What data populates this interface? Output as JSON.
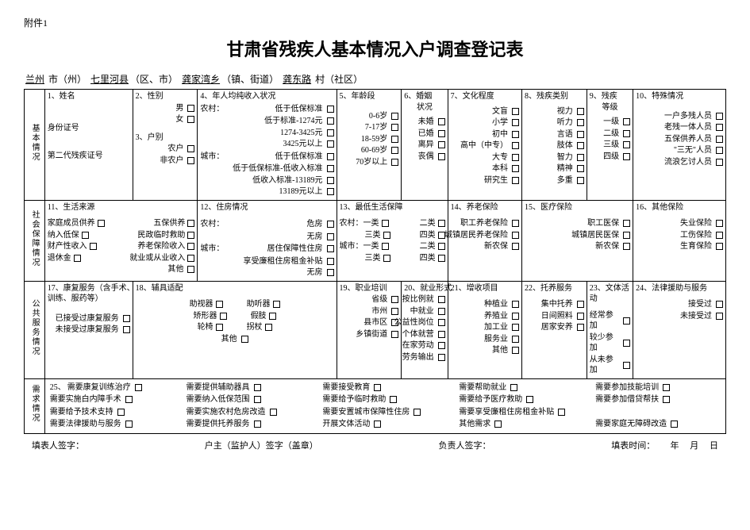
{
  "attachment": "附件1",
  "title": "甘肃省残疾人基本情况入户调查登记表",
  "location": {
    "city_prefix": "兰州",
    "city_label": " 市（州）",
    "county": "七里河县",
    "county_label": "（区、市）",
    "town": "龚家湾乡",
    "town_label": "（镇、街道）",
    "village": "龚东路",
    "village_label": " 村（社区）"
  },
  "sections": {
    "basic": "基本情况",
    "social": "社会保障情况",
    "public": "公共服务情况",
    "need": "需求情况"
  },
  "basic": {
    "c1": {
      "h": "1、姓名",
      "a": "身份证号",
      "b": "第二代残疾证号"
    },
    "c2": {
      "h": "2、性别",
      "opts": [
        "男",
        "女"
      ],
      "h3": "3、户别",
      "opts3": [
        "农户",
        "非农户"
      ]
    },
    "c4": {
      "h": "4、年人均纯收入状况",
      "rural": "农村：",
      "rural_opts": [
        "低于低保标准",
        "低于标准-1274元",
        "1274-3425元",
        "3425元以上"
      ],
      "urban": "城市：",
      "urban_opts": [
        "低于低保标准",
        "低于低保标准-低收入标准",
        "低收入标准-13189元",
        "13189元以上"
      ]
    },
    "c5": {
      "h": "5、年龄段",
      "opts": [
        "0-6岁",
        "7-17岁",
        "18-59岁",
        "60-69岁",
        "70岁以上"
      ]
    },
    "c6": {
      "h": "6、婚姻",
      "sub": "状况",
      "opts": [
        "未婚",
        "已婚",
        "离异",
        "丧偶"
      ]
    },
    "c7": {
      "h": "7、文化程度",
      "opts": [
        "文盲",
        "小学",
        "初中",
        "高中（中专）",
        "大专",
        "本科",
        "研究生"
      ]
    },
    "c8": {
      "h": "8、残疾类别",
      "opts": [
        "视力",
        "听力",
        "言语",
        "肢体",
        "智力",
        "精神",
        "多重"
      ]
    },
    "c9": {
      "h": "9、残疾",
      "sub": "等级",
      "opts": [
        "一级",
        "二级",
        "三级",
        "四级"
      ]
    },
    "c10": {
      "h": "10、特殊情况",
      "opts": [
        "一户多残人员",
        "老残一体人员",
        "五保供养人员",
        "\"三无\"人员",
        "流浪乞讨人员"
      ]
    }
  },
  "social": {
    "c11": {
      "h": "11、生活来源",
      "pairs": [
        [
          "家庭成员供养",
          "五保供养"
        ],
        [
          "纳入低保",
          "民政临时救助"
        ],
        [
          "财产性收入",
          "养老保险收入"
        ],
        [
          "退休金",
          "就业或从业收入"
        ]
      ],
      "last": "其他"
    },
    "c12": {
      "h": "12、住房情况",
      "rural": "农村：",
      "ruralR": [
        "危房",
        "无房"
      ],
      "urban": "城市：",
      "urbanR": [
        "居住保障性住房",
        "享受廉租住房租金补贴",
        "无房"
      ]
    },
    "c13": {
      "h": "13、最低生活保障",
      "rows": [
        [
          "农村：一类",
          "二类"
        ],
        [
          "三类",
          "四类"
        ],
        [
          "城市：一类",
          "二类"
        ],
        [
          "三类",
          "四类"
        ]
      ]
    },
    "c14": {
      "h": "14、养老保险",
      "opts": [
        "职工养老保险",
        "城镇居民养老保险",
        "新农保"
      ]
    },
    "c15": {
      "h": "15、医疗保险",
      "opts": [
        "职工医保",
        "城镇居民医保",
        "新农保"
      ]
    },
    "c16": {
      "h": "16、其他保险",
      "opts": [
        "失业保险",
        "工伤保险",
        "生育保险"
      ]
    }
  },
  "public": {
    "c17": {
      "h": "17、康复服务（含手术、",
      "h2": "训练、服药等）",
      "opts": [
        "已接受过康复服务",
        "未接受过康复服务"
      ]
    },
    "c18": {
      "h": "18、辅具适配",
      "pairs": [
        [
          "助视器",
          "助听器"
        ],
        [
          "矫形器",
          "假肢"
        ],
        [
          "轮椅",
          "拐杖"
        ]
      ],
      "last": "其他"
    },
    "c19": {
      "h": "19、职业培训",
      "opts": [
        "省级",
        "市州",
        "县市区",
        "乡镇街道"
      ]
    },
    "c20": {
      "h": "20、就业形式",
      "sub": "按比例就",
      "opts": [
        "中就业",
        "公益性岗位",
        "个体就营",
        "在家劳动",
        "劳务输出"
      ]
    },
    "c21": {
      "h": "21、增收项目",
      "opts": [
        "种植业",
        "养殖业",
        "加工业",
        "服务业",
        "其他"
      ]
    },
    "c22": {
      "h": "22、托养服务",
      "opts": [
        "集中托养",
        "日间照料",
        "居家安养"
      ]
    },
    "c23": {
      "h": "23、文体活动",
      "opts": [
        "经常参加",
        "较少参加",
        "从未参加"
      ]
    },
    "c24": {
      "h": "24、法律援助与服务",
      "opts": [
        "接受过",
        "未接受过"
      ]
    }
  },
  "need": {
    "h": "25、",
    "cols": [
      [
        "需要康复训练治疗",
        "需要实施白内障手术",
        "需要给予技术支持",
        "需要法律援助与服务"
      ],
      [
        "需要提供辅助器具",
        "需要纳入低保范围",
        "需要实施农村危房改造",
        "需要提供托养服务"
      ],
      [
        "需要接受教育",
        "需要给予临时救助",
        "需要安置城市保障性住房",
        "开展文体活动"
      ],
      [
        "需要帮助就业",
        "需要给予医疗救助",
        "需要享受廉租住房租金补贴",
        "其他需求"
      ],
      [
        "需要参加技能培训",
        "需要参加借贷帮扶",
        "",
        "需要家庭无障碍改造"
      ]
    ]
  },
  "sig": {
    "a": "填表人签字：",
    "b": "户主（监护人）签字（盖章）",
    "c": "负责人签字：",
    "d": "填表时间：",
    "y": "年",
    "m": "月",
    "day": "日"
  }
}
